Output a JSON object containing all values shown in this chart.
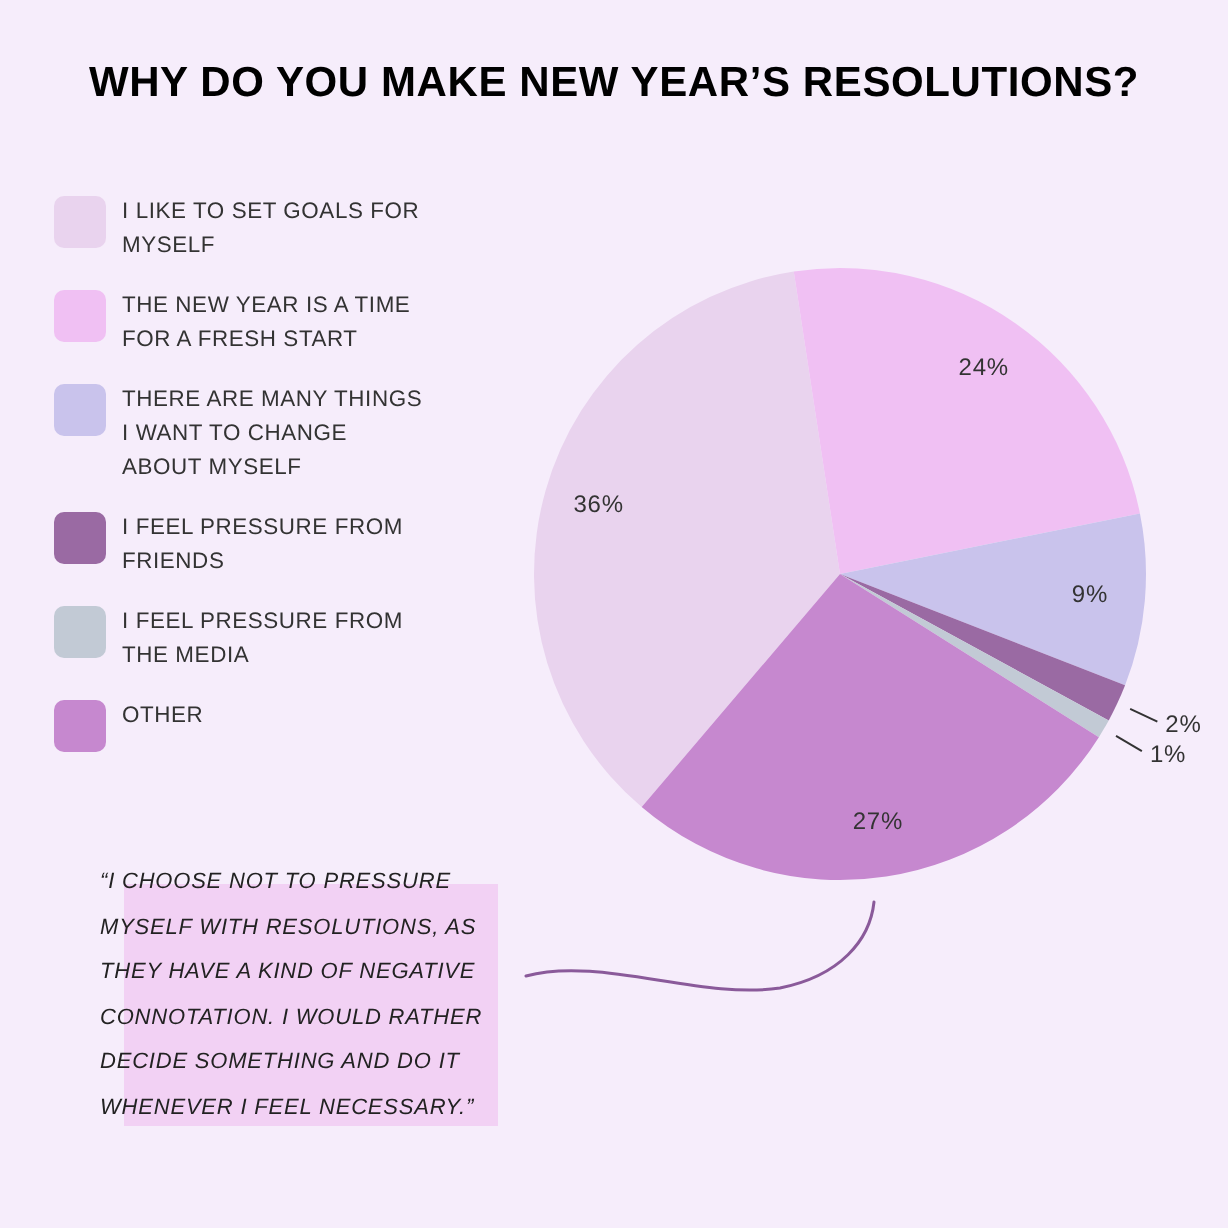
{
  "chart_data": {
    "type": "pie",
    "title": "WHY DO YOU MAKE NEW YEAR’S RESOLUTIONS?",
    "categories": [
      "I LIKE TO SET GOALS FOR MYSELF",
      "THE NEW YEAR IS A TIME FOR A FRESH START",
      "THERE ARE MANY THINGS I WANT TO CHANGE ABOUT MYSELF",
      "I FEEL PRESSURE FROM FRIENDS",
      "I FEEL PRESSURE FROM THE MEDIA",
      "OTHER"
    ],
    "values": [
      36,
      24,
      9,
      2,
      1,
      27
    ],
    "colors": [
      "#e9d3ee",
      "#f0c0f3",
      "#c9c3ec",
      "#9a6aa3",
      "#c2cad5",
      "#c688cf"
    ],
    "value_labels": [
      "36%",
      "24%",
      "9%",
      "2%",
      "1%",
      "27%"
    ],
    "legend": "left",
    "annotations": [
      "“I CHOOSE NOT TO PRESSURE MYSELF WITH RESOLUTIONS, AS THEY HAVE A KIND OF NEGATIVE CONNOTATION. I WOULD RATHER DECIDE SOMETHING AND DO IT WHENEVER I FEEL NECESSARY.”"
    ]
  }
}
